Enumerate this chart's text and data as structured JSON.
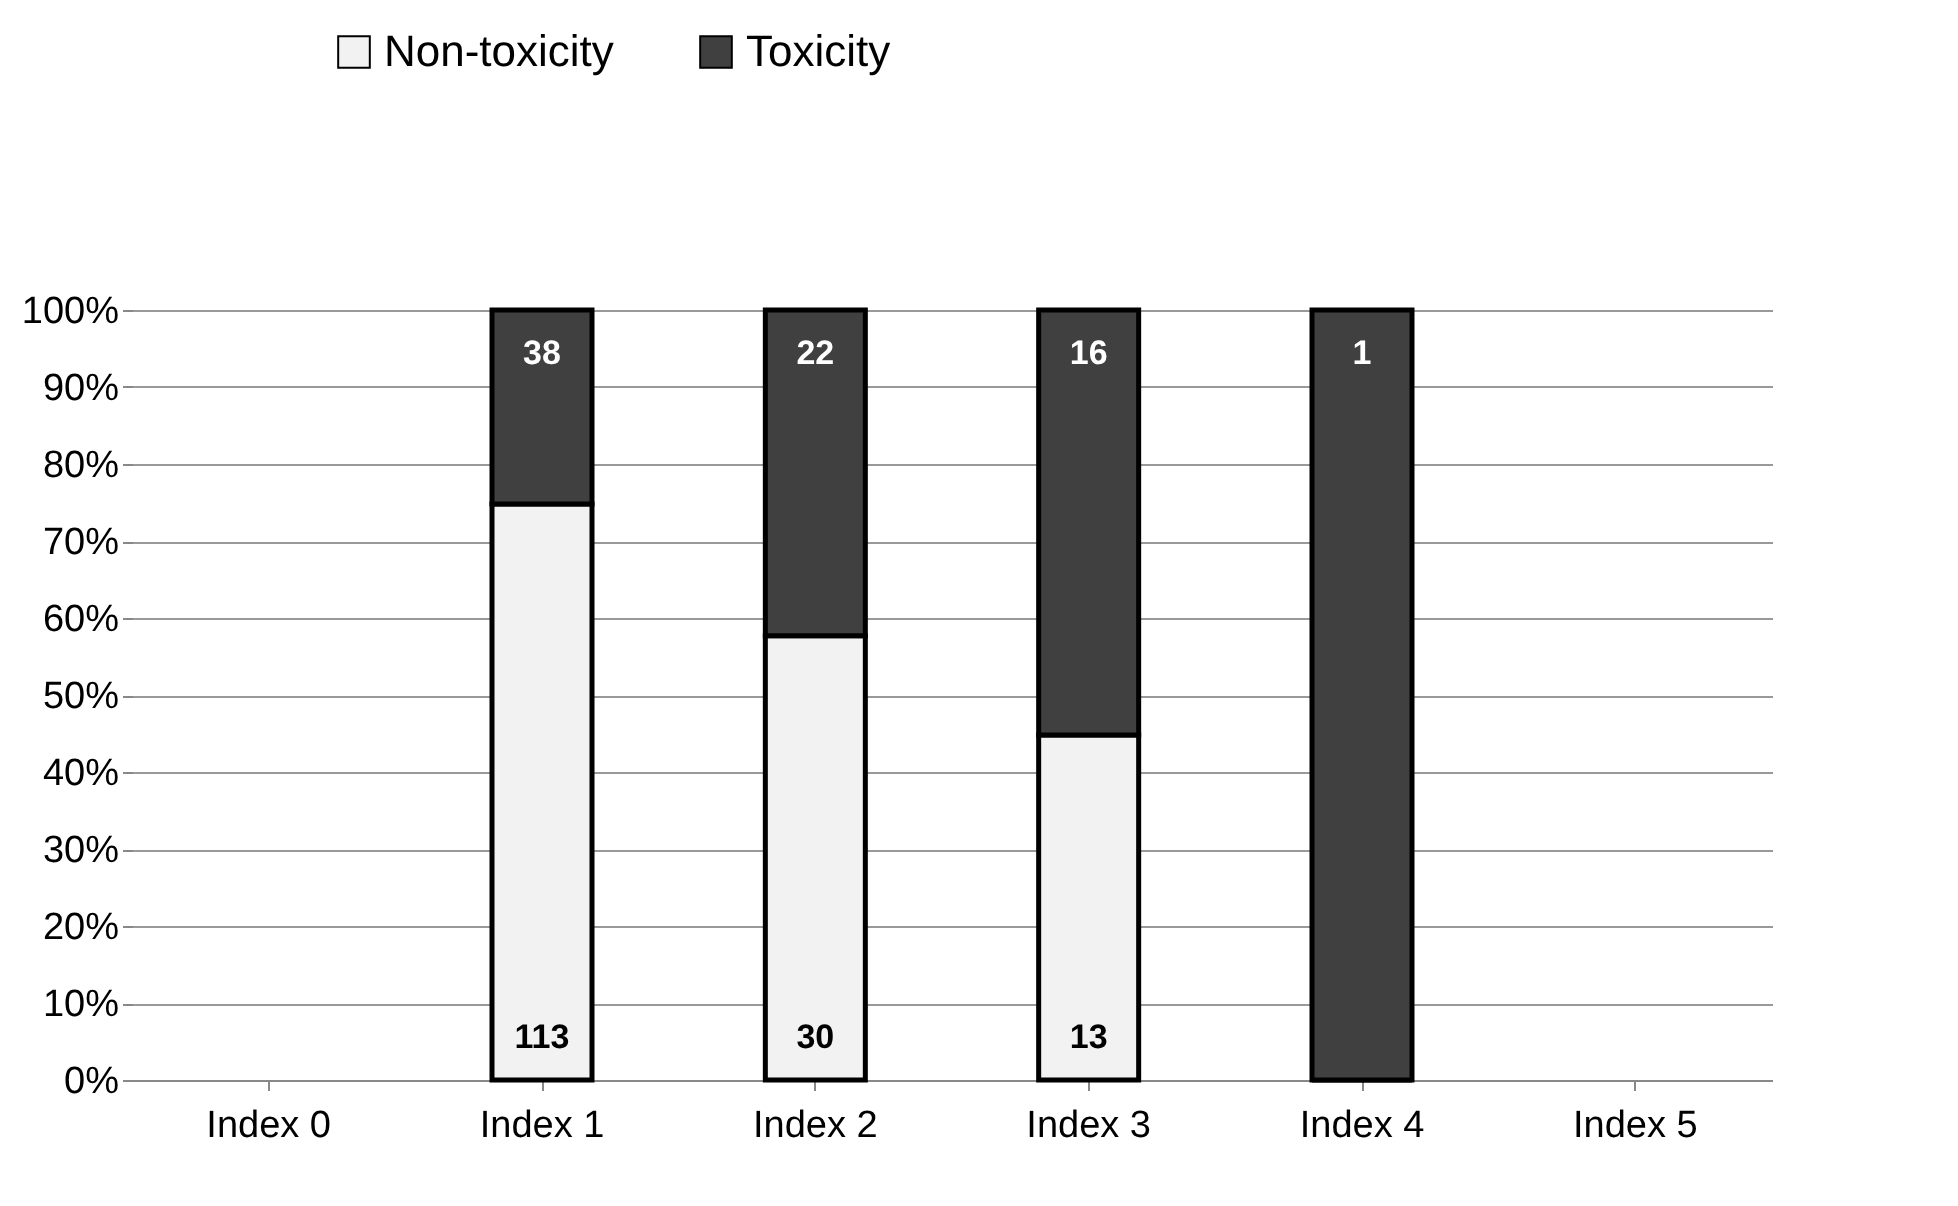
{
  "chart_data": {
    "type": "bar",
    "stacked": true,
    "categories": [
      "Index 0",
      "Index 1",
      "Index 2",
      "Index 3",
      "Index 4",
      "Index 5"
    ],
    "series": [
      {
        "name": "Non-toxicity",
        "color": "#f2f2f2",
        "values": [
          null,
          74.8,
          57.7,
          44.8,
          0,
          null
        ]
      },
      {
        "name": "Toxicity",
        "color": "#404040",
        "values": [
          null,
          25.2,
          42.3,
          55.2,
          100,
          null
        ]
      }
    ],
    "annotations": [
      {
        "text": "113",
        "x": "Index 1",
        "y": 0
      },
      {
        "text": "30",
        "x": "Index 2",
        "y": 0
      },
      {
        "text": "13",
        "x": "Index 3",
        "y": 0
      },
      {
        "text": "38",
        "x": "Index 1",
        "y": 100
      },
      {
        "text": "22",
        "x": "Index 2",
        "y": 100
      },
      {
        "text": "16",
        "x": "Index 3",
        "y": 100
      },
      {
        "text": "1",
        "x": "Index 4",
        "y": 100
      }
    ],
    "ylim": [
      0,
      100
    ],
    "yticks": [
      {
        "value": 0,
        "label": "0%"
      },
      {
        "value": 10,
        "label": "10%"
      },
      {
        "value": 20,
        "label": "20%"
      },
      {
        "value": 30,
        "label": "30%"
      },
      {
        "value": 40,
        "label": "40%"
      },
      {
        "value": 50,
        "label": "50%"
      },
      {
        "value": 60,
        "label": "60%"
      },
      {
        "value": 70,
        "label": "70%"
      },
      {
        "value": 80,
        "label": "80%"
      },
      {
        "value": 90,
        "label": "90%"
      },
      {
        "value": 100,
        "label": "100%"
      }
    ],
    "grid": "y",
    "legend": "top"
  }
}
